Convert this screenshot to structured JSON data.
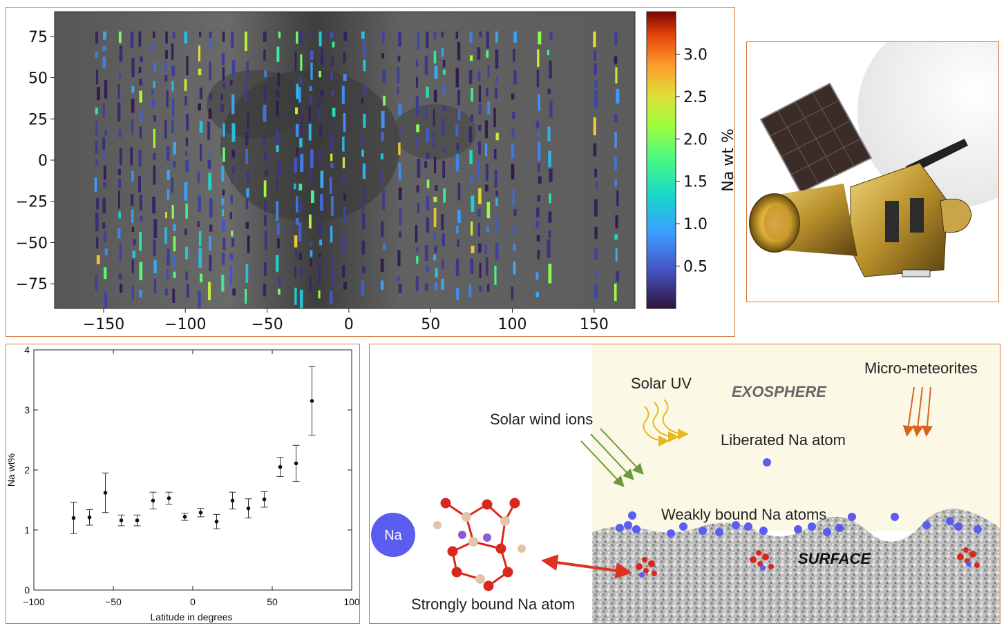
{
  "chart_data": [
    {
      "type": "heatmap",
      "title": "",
      "xlabel": "",
      "ylabel": "",
      "xlim": [
        -180,
        175
      ],
      "ylim": [
        -90,
        90
      ],
      "x_ticks": [
        "−150",
        "−100",
        "−50",
        "0",
        "50",
        "100",
        "150"
      ],
      "x_tick_values": [
        -150,
        -100,
        -50,
        0,
        50,
        100,
        150
      ],
      "y_ticks": [
        "75",
        "50",
        "25",
        "0",
        "−25",
        "−50",
        "−75"
      ],
      "y_tick_values": [
        75,
        50,
        25,
        0,
        -25,
        -50,
        -75
      ],
      "colorbar": {
        "label": "Na wt %",
        "ticks": [
          "3.0",
          "2.5",
          "2.0",
          "1.5",
          "1.0",
          "0.5"
        ],
        "tick_values": [
          3.0,
          2.5,
          2.0,
          1.5,
          1.0,
          0.5
        ],
        "range": [
          0,
          3.5
        ],
        "colormap": "turbo"
      },
      "swath_longitudes": [
        -155,
        -150,
        -141,
        -133,
        -128,
        -120,
        -112,
        -108,
        -100,
        -92,
        -86,
        -78,
        -72,
        -63,
        -52,
        -44,
        -33,
        -30,
        -24,
        -18,
        -11,
        -4,
        8,
        20,
        30,
        41,
        47,
        52,
        57,
        66,
        74,
        79,
        84,
        89,
        100,
        115,
        122,
        150,
        163
      ]
    },
    {
      "type": "scatter",
      "title": "",
      "xlabel": "Latitude in degrees",
      "ylabel": "Na wt%",
      "xlim": [
        -100,
        100
      ],
      "ylim": [
        0,
        4
      ],
      "x_ticks": [
        "−100",
        "−50",
        "0",
        "50",
        "100"
      ],
      "x_tick_values": [
        -100,
        -50,
        0,
        50,
        100
      ],
      "y_ticks": [
        "0",
        "1",
        "2",
        "3",
        "4"
      ],
      "y_tick_values": [
        0,
        1,
        2,
        3,
        4
      ],
      "series": [
        {
          "name": "Na wt% vs latitude",
          "x": [
            -75,
            -65,
            -55,
            -45,
            -35,
            -25,
            -15,
            -5,
            5,
            15,
            25,
            35,
            45,
            55,
            65,
            75
          ],
          "y": [
            1.2,
            1.21,
            1.62,
            1.16,
            1.16,
            1.49,
            1.53,
            1.22,
            1.29,
            1.14,
            1.49,
            1.36,
            1.51,
            2.05,
            2.11,
            3.15
          ],
          "err": [
            0.26,
            0.13,
            0.33,
            0.09,
            0.09,
            0.14,
            0.1,
            0.06,
            0.07,
            0.12,
            0.14,
            0.16,
            0.13,
            0.16,
            0.3,
            0.57
          ]
        }
      ]
    }
  ],
  "diagram": {
    "labels": {
      "exosphere": "EXOSPHERE",
      "surface": "SURFACE",
      "solar_uv": "Solar UV",
      "solar_wind": "Solar wind ions",
      "micrometeorites": "Micro-meteorites",
      "liberated": "Liberated Na atom",
      "weakly_bound": "Weakly bound Na atoms",
      "strongly_bound": "Strongly bound Na atom",
      "na_symbol": "Na"
    }
  },
  "colors": {
    "panel_border": "#d4763a",
    "exosphere_bg": "#fbf8e6",
    "na_atom": "#5b5cf0",
    "arrow_red": "#e03020",
    "uv_yellow": "#e8b820",
    "wind_green": "#6a9a3a",
    "meteor_orange": "#d9621e"
  }
}
